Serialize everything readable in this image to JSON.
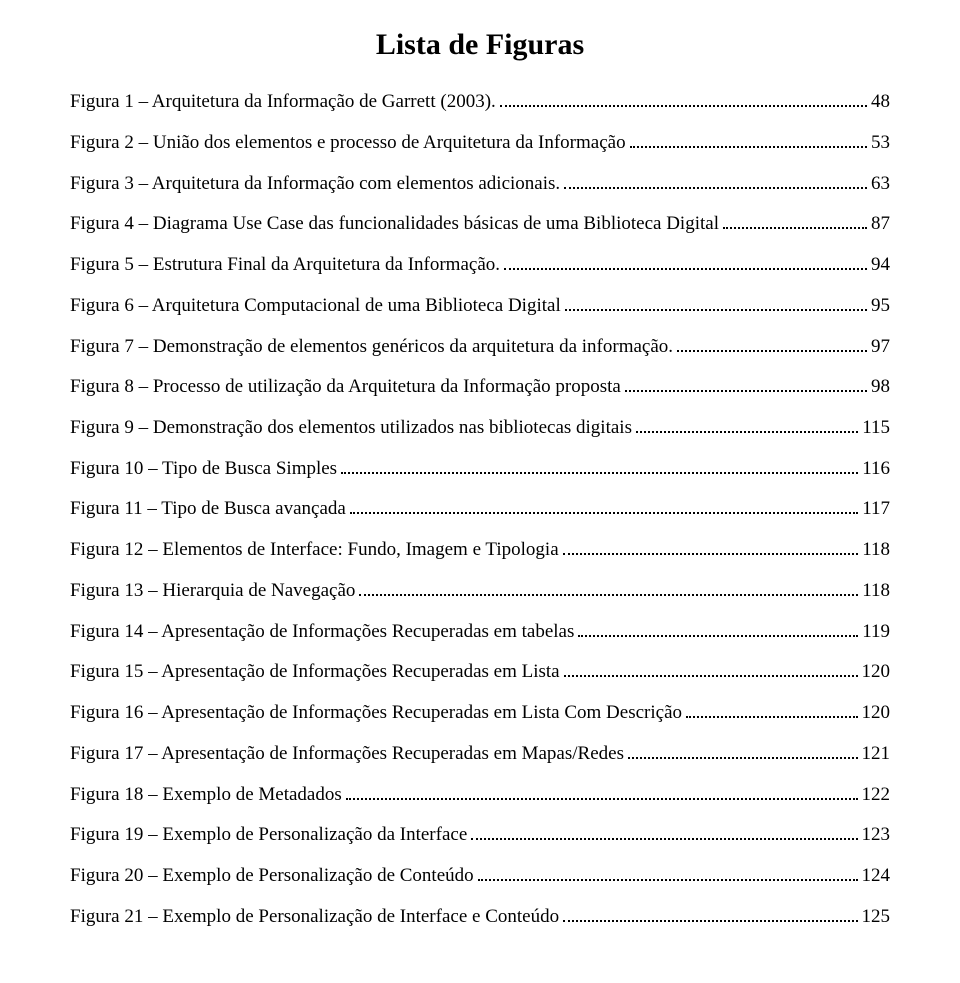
{
  "title": "Lista de Figuras",
  "entries": [
    {
      "label": "Figura 1 – Arquitetura da Informação de Garrett (2003).",
      "page": "48"
    },
    {
      "label": "Figura 2 – União dos elementos e processo de Arquitetura da Informação",
      "page": "53"
    },
    {
      "label": "Figura 3 – Arquitetura da Informação com elementos adicionais.",
      "page": "63"
    },
    {
      "label": "Figura 4 – Diagrama Use Case das funcionalidades básicas de uma Biblioteca Digital",
      "page": "87"
    },
    {
      "label": "Figura 5 – Estrutura Final da Arquitetura da Informação.",
      "page": "94"
    },
    {
      "label": "Figura 6 – Arquitetura Computacional de uma Biblioteca Digital",
      "page": "95"
    },
    {
      "label": "Figura 7 – Demonstração de elementos genéricos da arquitetura da informação.",
      "page": "97"
    },
    {
      "label": "Figura 8 – Processo de utilização da Arquitetura da Informação proposta",
      "page": "98"
    },
    {
      "label": "Figura 9 – Demonstração dos elementos utilizados nas bibliotecas digitais",
      "page": "115"
    },
    {
      "label": "Figura 10 – Tipo de Busca Simples",
      "page": "116"
    },
    {
      "label": "Figura 11 – Tipo de Busca avançada",
      "page": "117"
    },
    {
      "label": "Figura 12 – Elementos de Interface: Fundo, Imagem e Tipologia",
      "page": "118"
    },
    {
      "label": "Figura 13 – Hierarquia de Navegação",
      "page": "118"
    },
    {
      "label": "Figura 14 – Apresentação de Informações Recuperadas em tabelas",
      "page": "119"
    },
    {
      "label": "Figura 15 – Apresentação de Informações Recuperadas em Lista",
      "page": "120"
    },
    {
      "label": "Figura 16 – Apresentação de Informações Recuperadas em Lista Com Descrição",
      "page": "120"
    },
    {
      "label": "Figura 17 – Apresentação de Informações Recuperadas em Mapas/Redes",
      "page": "121"
    },
    {
      "label": "Figura 18 – Exemplo de Metadados",
      "page": "122"
    },
    {
      "label": "Figura 19 – Exemplo de Personalização da Interface",
      "page": "123"
    },
    {
      "label": "Figura 20 – Exemplo de Personalização de Conteúdo",
      "page": "124"
    },
    {
      "label": "Figura 21 – Exemplo de Personalização de Interface e Conteúdo",
      "page": "125"
    }
  ]
}
